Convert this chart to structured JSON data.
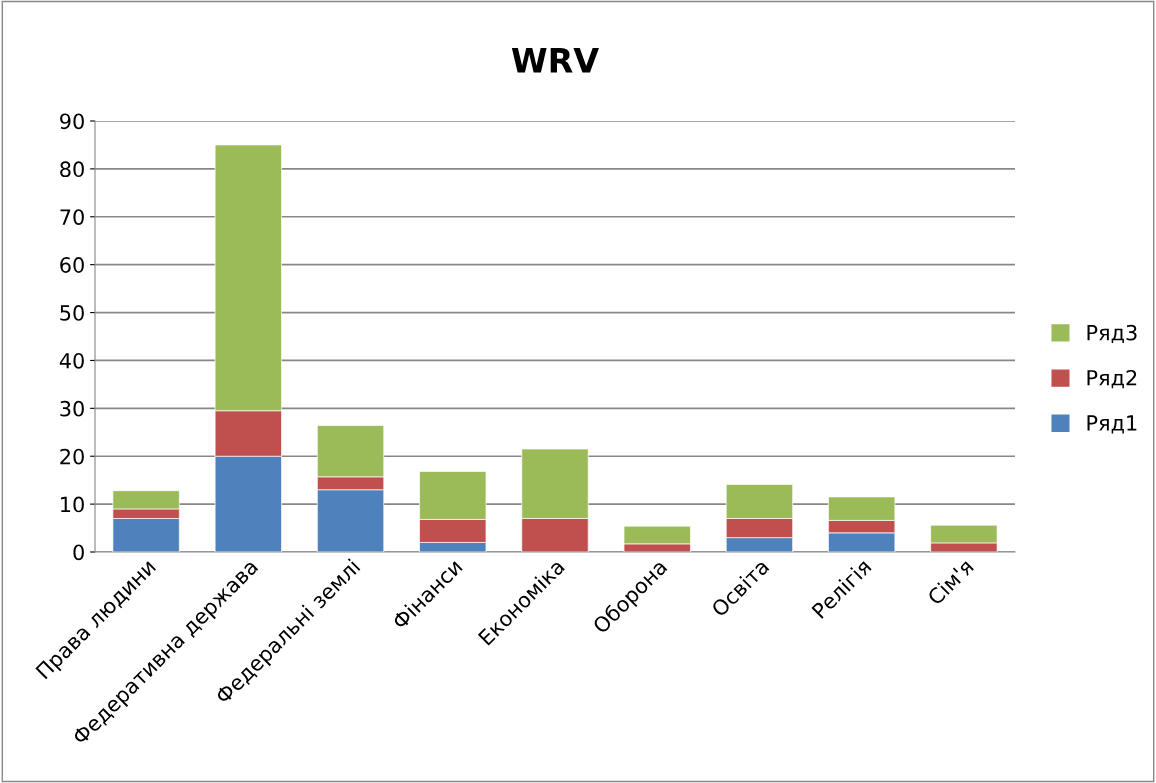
{
  "chart_data": {
    "type": "bar",
    "title": "WRV",
    "stacked": true,
    "categories": [
      "Права людини",
      "Федеративна держава",
      "Федеральні землі",
      "Фінанси",
      "Економіка",
      "Оборона",
      "Освіта",
      "Релігія",
      "Сім'я"
    ],
    "series": [
      {
        "name": "Ряд1",
        "color": "#4f81bd",
        "values": [
          7,
          20,
          13,
          2,
          0,
          0,
          3,
          4,
          0
        ]
      },
      {
        "name": "Ряд2",
        "color": "#c0504d",
        "values": [
          2,
          9.5,
          2.7,
          4.8,
          7,
          1.7,
          4,
          2.6,
          1.9
        ]
      },
      {
        "name": "Ряд3",
        "color": "#9bbb59",
        "values": [
          3.8,
          55.5,
          10.7,
          10,
          14.5,
          3.7,
          7.1,
          4.9,
          3.7
        ]
      }
    ],
    "ylim": [
      0,
      90
    ],
    "yticks": [
      0,
      10,
      20,
      30,
      40,
      50,
      60,
      70,
      80,
      90
    ],
    "grid": "y",
    "legend": "right"
  }
}
